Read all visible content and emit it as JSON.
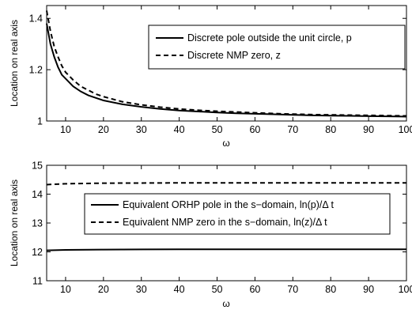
{
  "chart_data": [
    {
      "type": "line",
      "title": "",
      "xlabel": "ω",
      "ylabel": "Location on real axis",
      "xlim": [
        5,
        100
      ],
      "ylim": [
        1,
        1.45
      ],
      "xticks": [
        10,
        20,
        30,
        40,
        50,
        60,
        70,
        80,
        90,
        100
      ],
      "yticks": [
        1,
        1.2,
        1.4
      ],
      "ytick_labels": [
        "1",
        "1.2",
        "1.4"
      ],
      "grid": false,
      "legend_position": "top-right",
      "series": [
        {
          "name": "Discrete pole outside the unit circle, p",
          "style": "solid",
          "color": "#000000",
          "x": [
            5,
            6,
            7,
            8,
            9,
            10,
            12,
            14,
            16,
            18,
            20,
            25,
            30,
            35,
            40,
            45,
            50,
            55,
            60,
            65,
            70,
            75,
            80,
            85,
            90,
            95,
            100
          ],
          "y": [
            1.38,
            1.3,
            1.25,
            1.21,
            1.18,
            1.165,
            1.135,
            1.115,
            1.1,
            1.09,
            1.08,
            1.065,
            1.055,
            1.047,
            1.041,
            1.037,
            1.033,
            1.03,
            1.028,
            1.026,
            1.024,
            1.022,
            1.021,
            1.02,
            1.019,
            1.018,
            1.017
          ]
        },
        {
          "name": "Discrete NMP zero, z",
          "style": "dashed",
          "color": "#000000",
          "x": [
            5,
            6,
            7,
            8,
            9,
            10,
            12,
            14,
            16,
            18,
            20,
            25,
            30,
            35,
            40,
            45,
            50,
            55,
            60,
            65,
            70,
            75,
            80,
            85,
            90,
            95,
            100
          ],
          "y": [
            1.43,
            1.35,
            1.29,
            1.25,
            1.215,
            1.19,
            1.16,
            1.135,
            1.12,
            1.105,
            1.095,
            1.075,
            1.063,
            1.054,
            1.047,
            1.042,
            1.038,
            1.035,
            1.032,
            1.029,
            1.027,
            1.025,
            1.024,
            1.023,
            1.022,
            1.021,
            1.02
          ]
        }
      ]
    },
    {
      "type": "line",
      "title": "",
      "xlabel": "ω",
      "ylabel": "Location on real axis",
      "xlim": [
        5,
        100
      ],
      "ylim": [
        11,
        15
      ],
      "xticks": [
        10,
        20,
        30,
        40,
        50,
        60,
        70,
        80,
        90,
        100
      ],
      "yticks": [
        11,
        12,
        13,
        14,
        15
      ],
      "ytick_labels": [
        "11",
        "12",
        "13",
        "14",
        "15"
      ],
      "grid": false,
      "legend_position": "center-right",
      "series": [
        {
          "name": "Equivalent ORHP pole in the s−domain, ln(p)/Δ t",
          "style": "solid",
          "color": "#000000",
          "x": [
            5,
            10,
            20,
            30,
            40,
            50,
            60,
            70,
            80,
            90,
            100
          ],
          "y": [
            12.05,
            12.07,
            12.08,
            12.085,
            12.09,
            12.09,
            12.09,
            12.09,
            12.09,
            12.09,
            12.09
          ]
        },
        {
          "name": "Equivalent NMP zero in the s−domain, ln(z)/Δ t",
          "style": "dashed",
          "color": "#000000",
          "x": [
            5,
            10,
            20,
            30,
            40,
            50,
            60,
            70,
            80,
            90,
            100
          ],
          "y": [
            14.33,
            14.36,
            14.38,
            14.385,
            14.39,
            14.39,
            14.39,
            14.39,
            14.39,
            14.39,
            14.39
          ]
        }
      ]
    }
  ]
}
